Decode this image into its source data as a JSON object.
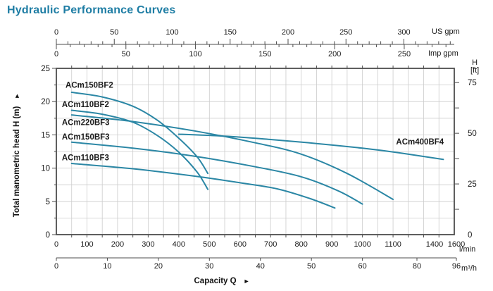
{
  "title": "Hydraulic Performance Curves",
  "colors": {
    "title": "#1e7da4",
    "curve": "#2b87a5",
    "grid": "#cccccc",
    "frame": "#4d4d4d",
    "text": "#1a1a1a"
  },
  "chart_data": {
    "type": "line",
    "title": "Hydraulic Performance Curves",
    "xlabel": "Capacity Q",
    "ylabel": "Total manometric head H (m)",
    "grid": "on",
    "axes": {
      "top_us": {
        "unit": "US gpm",
        "ticks": [
          0,
          50,
          100,
          150,
          200,
          250,
          300
        ]
      },
      "top_imp": {
        "unit": "Imp gpm",
        "ticks": [
          0,
          50,
          100,
          150,
          200,
          250
        ]
      },
      "bottom_lmin": {
        "unit": "l/min",
        "ticks": [
          0,
          100,
          200,
          300,
          400,
          500,
          600,
          700,
          800,
          900,
          1000,
          1100,
          1400,
          1600
        ]
      },
      "bottom_m3h": {
        "unit": "m³/h",
        "ticks": [
          0,
          10,
          20,
          30,
          40,
          50,
          60,
          80,
          96
        ]
      },
      "left_m": {
        "label": "Total manometric head H (m)",
        "ticks": [
          0,
          5,
          10,
          15,
          20,
          25
        ],
        "range": [
          0,
          25
        ]
      },
      "right_ft": {
        "label": "H [ft]",
        "label_lines": [
          "H",
          "[ft]"
        ],
        "ticks": [
          0,
          25,
          50,
          75
        ]
      }
    },
    "series": [
      {
        "name": "ACm150BF2",
        "label_pos": [
          30,
          22.5
        ],
        "points": [
          [
            50,
            21.4
          ],
          [
            150,
            20.7
          ],
          [
            250,
            19.3
          ],
          [
            330,
            17.2
          ],
          [
            400,
            14.5
          ],
          [
            460,
            11.7
          ],
          [
            495,
            9.2
          ]
        ]
      },
      {
        "name": "ACm110BF2",
        "label_pos": [
          18,
          19.6
        ],
        "points": [
          [
            50,
            18.7
          ],
          [
            150,
            18.1
          ],
          [
            250,
            16.9
          ],
          [
            330,
            14.9
          ],
          [
            400,
            12.4
          ],
          [
            460,
            9.4
          ],
          [
            495,
            6.8
          ]
        ]
      },
      {
        "name": "ACm220BF3",
        "label_pos": [
          18,
          16.9
        ],
        "points": [
          [
            50,
            18.0
          ],
          [
            250,
            17.0
          ],
          [
            450,
            15.6
          ],
          [
            650,
            13.8
          ],
          [
            800,
            12.1
          ],
          [
            950,
            9.2
          ],
          [
            1100,
            5.3
          ]
        ]
      },
      {
        "name": "ACm150BF3",
        "label_pos": [
          18,
          14.7
        ],
        "points": [
          [
            50,
            13.9
          ],
          [
            250,
            13.0
          ],
          [
            450,
            11.8
          ],
          [
            650,
            10.2
          ],
          [
            800,
            8.7
          ],
          [
            920,
            6.6
          ],
          [
            1000,
            4.6
          ]
        ]
      },
      {
        "name": "ACm110BF3",
        "label_pos": [
          18,
          11.6
        ],
        "points": [
          [
            50,
            10.7
          ],
          [
            250,
            9.9
          ],
          [
            450,
            8.8
          ],
          [
            600,
            7.8
          ],
          [
            720,
            6.9
          ],
          [
            830,
            5.4
          ],
          [
            910,
            4.0
          ]
        ]
      },
      {
        "name": "ACm400BF4",
        "label_pos": [
          1110,
          14.0
        ],
        "points": [
          [
            400,
            15.1
          ],
          [
            550,
            14.8
          ],
          [
            700,
            14.3
          ],
          [
            850,
            13.7
          ],
          [
            1000,
            13.0
          ],
          [
            1120,
            12.3
          ],
          [
            1264,
            11.3
          ]
        ]
      }
    ],
    "arrow_glyph": "►"
  }
}
